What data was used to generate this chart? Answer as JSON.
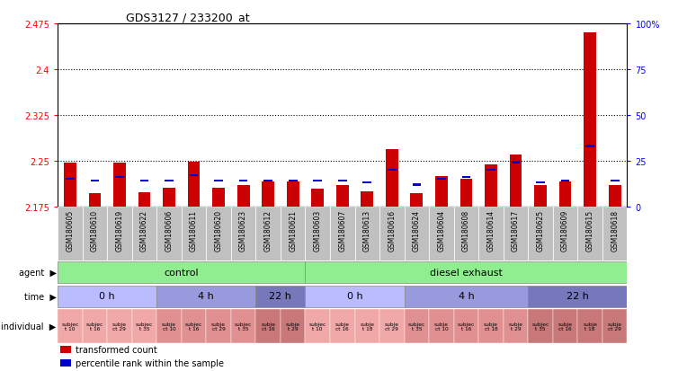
{
  "title": "GDS3127 / 233200_at",
  "samples": [
    "GSM180605",
    "GSM180610",
    "GSM180619",
    "GSM180622",
    "GSM180606",
    "GSM180611",
    "GSM180620",
    "GSM180623",
    "GSM180612",
    "GSM180621",
    "GSM180603",
    "GSM180607",
    "GSM180613",
    "GSM180616",
    "GSM180624",
    "GSM180604",
    "GSM180608",
    "GSM180614",
    "GSM180617",
    "GSM180625",
    "GSM180609",
    "GSM180615",
    "GSM180618"
  ],
  "transformed_count": [
    2.247,
    2.196,
    2.247,
    2.198,
    2.205,
    2.248,
    2.205,
    2.21,
    2.215,
    2.215,
    2.204,
    2.21,
    2.2,
    2.268,
    2.196,
    2.225,
    2.22,
    2.243,
    2.26,
    2.21,
    2.215,
    2.46,
    2.21
  ],
  "percentile_rank": [
    15,
    14,
    16,
    14,
    14,
    17,
    14,
    14,
    14,
    14,
    14,
    14,
    13,
    20,
    12,
    15,
    16,
    20,
    24,
    13,
    14,
    33,
    14
  ],
  "ylim_left": [
    2.175,
    2.475
  ],
  "ylim_right": [
    0,
    100
  ],
  "yticks_left": [
    2.175,
    2.25,
    2.325,
    2.4,
    2.475
  ],
  "ytick_labels_left": [
    "2.175",
    "2.25",
    "2.325",
    "2.4",
    "2.475"
  ],
  "yticks_right": [
    0,
    25,
    50,
    75,
    100
  ],
  "ytick_labels_right": [
    "0",
    "25",
    "50",
    "75",
    "100%"
  ],
  "gridlines_at": [
    2.25,
    2.325,
    2.4
  ],
  "bar_color": "#CC0000",
  "percentile_color": "#0000CC",
  "bg_color": "#FFFFFF",
  "xtick_bg": "#C0C0C0",
  "agent_color": "#90EE90",
  "time_colors": {
    "0 h": "#BBBBFF",
    "4 h": "#9999DD",
    "22 h": "#7777BB"
  },
  "indiv_colors": [
    "#F0A0A0",
    "#E89898",
    "#D08080",
    "#C87878"
  ],
  "base_value": 2.175,
  "bar_width": 0.5,
  "agent_groups": [
    {
      "label": "control",
      "start": 0,
      "end": 10
    },
    {
      "label": "diesel exhaust",
      "start": 10,
      "end": 23
    }
  ],
  "time_groups": [
    {
      "label": "0 h",
      "start": 0,
      "end": 4
    },
    {
      "label": "4 h",
      "start": 4,
      "end": 8
    },
    {
      "label": "22 h",
      "start": 8,
      "end": 10
    },
    {
      "label": "0 h",
      "start": 10,
      "end": 14
    },
    {
      "label": "4 h",
      "start": 14,
      "end": 19
    },
    {
      "label": "22 h",
      "start": 19,
      "end": 23
    }
  ],
  "indiv_labels": [
    "subjec\nt 10",
    "subjec\nt 16",
    "subje\nct 29",
    "subjec\nt 35",
    "subje\nct 10",
    "subjec\nt 16",
    "subje\nct 29",
    "subjec\nt 35",
    "subje\nct 16",
    "subje\nt 29",
    "subjec\nt 10",
    "subje\nct 16",
    "subje\nt 18",
    "subje\nct 29",
    "subjec\nt 35",
    "subje\nct 10",
    "subjec\nt 16",
    "subje\nct 18",
    "subje\nt 29",
    "subjec\nt 35",
    "subje\nct 16",
    "subje\nt 18",
    "subje\nct 29"
  ],
  "legend": [
    {
      "color": "#CC0000",
      "label": "transformed count"
    },
    {
      "color": "#0000CC",
      "label": "percentile rank within the sample"
    }
  ]
}
